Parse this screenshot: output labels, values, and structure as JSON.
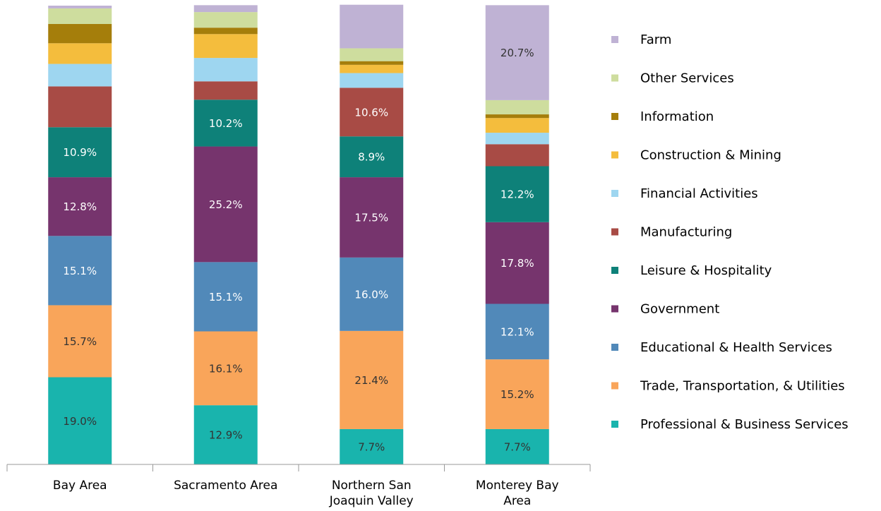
{
  "chart_data": {
    "type": "stacked_bar",
    "categories": [
      "Bay Area",
      "Sacramento Area",
      "Northern San Joaquin Valley",
      "Monterey Bay Area"
    ],
    "series": [
      {
        "name": "Professional & Business Services",
        "color": "#19b4ad",
        "values": [
          19.0,
          12.9,
          7.7,
          7.7
        ],
        "value_labels": [
          "19.0%",
          "12.9%",
          "7.7%",
          "7.7%"
        ]
      },
      {
        "name": "Trade, Transportation, & Utilities",
        "color": "#f9a55a",
        "values": [
          15.7,
          16.1,
          21.4,
          15.2
        ],
        "value_labels": [
          "15.7%",
          "16.1%",
          "21.4%",
          "15.2%"
        ]
      },
      {
        "name": "Educational & Health Services",
        "color": "#5189b9",
        "values": [
          15.1,
          15.1,
          16.0,
          12.1
        ],
        "value_labels": [
          "15.1%",
          "15.1%",
          "16.0%",
          "12.1%"
        ]
      },
      {
        "name": "Government",
        "color": "#76346d",
        "values": [
          12.8,
          25.2,
          17.5,
          17.8
        ],
        "value_labels": [
          "12.8%",
          "25.2%",
          "17.5%",
          "17.8%"
        ]
      },
      {
        "name": "Leisure & Hospitality",
        "color": "#0e8179",
        "values": [
          10.9,
          10.2,
          8.9,
          12.2
        ],
        "value_labels": [
          "10.9%",
          "10.2%",
          "8.9%",
          "12.2%"
        ]
      },
      {
        "name": "Manufacturing",
        "color": "#a84b45",
        "values": [
          8.9,
          4.0,
          10.6,
          4.8
        ],
        "value_labels": [
          null,
          null,
          "10.6%",
          null
        ]
      },
      {
        "name": "Financial Activities",
        "color": "#9ed6f0",
        "values": [
          4.9,
          5.1,
          3.2,
          2.5
        ]
      },
      {
        "name": "Construction & Mining",
        "color": "#f4bd3d",
        "values": [
          4.5,
          5.2,
          1.8,
          3.2
        ]
      },
      {
        "name": "Information",
        "color": "#a57e0b",
        "values": [
          4.2,
          1.4,
          0.8,
          0.8
        ]
      },
      {
        "name": "Other Services",
        "color": "#cedd9e",
        "values": [
          3.4,
          3.4,
          2.8,
          3.1
        ]
      },
      {
        "name": "Farm",
        "color": "#bfb2d4",
        "values": [
          0.6,
          1.5,
          9.5,
          20.7
        ],
        "value_labels": [
          null,
          null,
          null,
          "20.7%"
        ]
      }
    ]
  }
}
